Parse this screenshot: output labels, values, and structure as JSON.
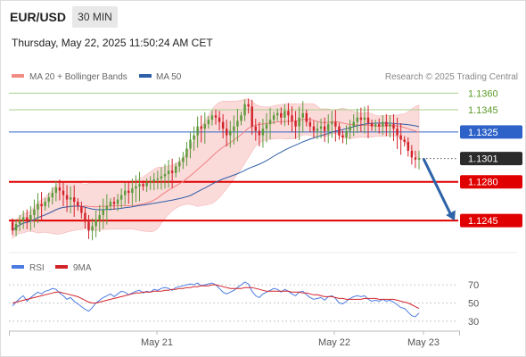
{
  "header": {
    "pair": "EUR/USD",
    "timeframe": "30 MIN",
    "datetime": "Thursday, May 22, 2025 11:50:24 AM CET"
  },
  "legend": {
    "ma20": "MA 20 + Bollinger Bands",
    "ma50": "MA 50",
    "credit": "Research © 2025 Trading Central"
  },
  "rsi_legend": {
    "rsi": "RSI",
    "ma": "9MA"
  },
  "colors": {
    "bull": "#5b9b3c",
    "bear": "#d2222a",
    "boll_fill": "#fbdada",
    "ma20": "#f08080",
    "ma50": "#2f5fa8",
    "support": "#e00000",
    "resistance_green": "#a8d08d",
    "pivot_blue": "#2d63c8",
    "arrow": "#2d63a8",
    "rsi": "#4a7be0",
    "rsi_ma": "#d2222a"
  },
  "chart_data": [
    {
      "type": "candlestick",
      "title": "EUR/USD 30 MIN",
      "ylim": [
        1.1225,
        1.137
      ],
      "x_labels": [
        "May 21",
        "May 22",
        "May 23"
      ],
      "levels": [
        {
          "label": "1.1360",
          "value": 1.136,
          "kind": "resistance"
        },
        {
          "label": "1.1345",
          "value": 1.1345,
          "kind": "resistance"
        },
        {
          "label": "1.1325",
          "value": 1.1325,
          "kind": "pivot"
        },
        {
          "label": "1.1301",
          "value": 1.1301,
          "kind": "last"
        },
        {
          "label": "1.1280",
          "value": 1.128,
          "kind": "support"
        },
        {
          "label": "1.1245",
          "value": 1.1245,
          "kind": "support"
        }
      ],
      "closes": [
        1.1236,
        1.1242,
        1.1245,
        1.1248,
        1.1246,
        1.125,
        1.1255,
        1.126,
        1.1258,
        1.1262,
        1.1266,
        1.127,
        1.1275,
        1.1272,
        1.1268,
        1.1264,
        1.1266,
        1.1262,
        1.1258,
        1.1252,
        1.1244,
        1.1236,
        1.124,
        1.1246,
        1.125,
        1.1255,
        1.1258,
        1.1262,
        1.126,
        1.1264,
        1.1268,
        1.1272,
        1.127,
        1.1274,
        1.1276,
        1.1278,
        1.1276,
        1.1279,
        1.128,
        1.1282,
        1.1283,
        1.1285,
        1.1287,
        1.129,
        1.1288,
        1.1294,
        1.1298,
        1.1302,
        1.131,
        1.1318,
        1.1322,
        1.133,
        1.1328,
        1.1332,
        1.1336,
        1.134,
        1.1338,
        1.1334,
        1.1328,
        1.1322,
        1.1326,
        1.133,
        1.1335,
        1.134,
        1.135,
        1.1348,
        1.133,
        1.1326,
        1.1322,
        1.1328,
        1.1332,
        1.1336,
        1.134,
        1.1342,
        1.1338,
        1.1344,
        1.134,
        1.1335,
        1.133,
        1.1338,
        1.1342,
        1.1334,
        1.133,
        1.1326,
        1.1328,
        1.133,
        1.1326,
        1.1332,
        1.1334,
        1.133,
        1.1322,
        1.132,
        1.1326,
        1.133,
        1.1334,
        1.1338,
        1.1336,
        1.1338,
        1.1333,
        1.133,
        1.1332,
        1.133,
        1.1334,
        1.133,
        1.1332,
        1.1328,
        1.1322,
        1.1318,
        1.1316,
        1.1308,
        1.1302,
        1.13,
        1.1301
      ],
      "rsi": [
        47,
        51,
        55,
        58,
        52,
        56,
        59,
        62,
        60,
        63,
        64,
        66,
        65,
        61,
        58,
        54,
        56,
        52,
        49,
        46,
        43,
        41,
        45,
        50,
        53,
        56,
        58,
        60,
        57,
        60,
        63,
        62,
        59,
        61,
        63,
        64,
        61,
        63,
        62,
        65,
        64,
        66,
        67,
        66,
        64,
        67,
        68,
        69,
        70,
        71,
        70,
        72,
        69,
        70,
        71,
        72,
        70,
        66,
        62,
        60,
        62,
        64,
        67,
        70,
        73,
        71,
        63,
        58,
        56,
        60,
        62,
        64,
        66,
        65,
        62,
        65,
        63,
        60,
        58,
        62,
        63,
        59,
        56,
        54,
        55,
        56,
        53,
        57,
        58,
        55,
        50,
        49,
        52,
        55,
        57,
        58,
        57,
        58,
        54,
        52,
        53,
        52,
        54,
        52,
        53,
        51,
        48,
        45,
        44,
        40,
        36,
        35,
        39
      ],
      "rsi_ma": [
        50,
        51,
        52,
        53,
        54,
        55,
        56,
        57,
        58,
        59,
        60,
        61,
        62,
        62,
        61,
        60,
        59,
        58,
        57,
        55,
        53,
        51,
        50,
        50,
        51,
        52,
        53,
        54,
        55,
        56,
        57,
        58,
        59,
        60,
        61,
        61,
        62,
        62,
        62,
        63,
        63,
        63,
        64,
        64,
        65,
        65,
        66,
        66,
        67,
        67,
        68,
        68,
        69,
        69,
        69,
        70,
        70,
        69,
        68,
        67,
        66,
        66,
        66,
        66,
        67,
        67,
        67,
        66,
        65,
        64,
        63,
        63,
        63,
        63,
        63,
        63,
        63,
        62,
        62,
        62,
        61,
        61,
        60,
        59,
        59,
        58,
        57,
        57,
        57,
        56,
        55,
        55,
        54,
        54,
        54,
        54,
        54,
        55,
        55,
        55,
        55,
        54,
        54,
        54,
        54,
        54,
        53,
        52,
        51,
        50,
        48,
        46,
        44
      ],
      "rsi_levels": [
        70,
        50,
        30
      ],
      "rsi_ylim": [
        22,
        78
      ]
    }
  ]
}
